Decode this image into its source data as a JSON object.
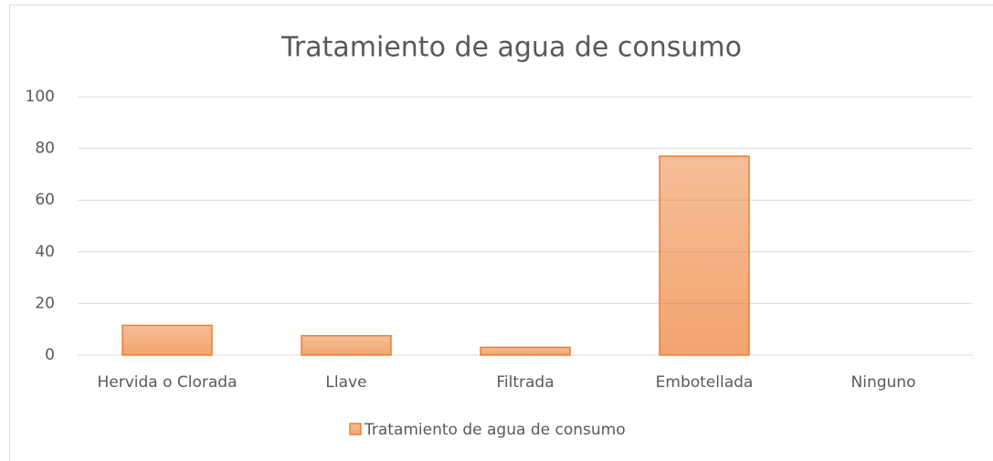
{
  "chart_data": {
    "type": "bar",
    "title": "Tratamiento de agua de consumo",
    "categories": [
      "Hervida o Clorada",
      "Llave",
      "Filtrada",
      "Embotellada",
      "Ninguno"
    ],
    "series": [
      {
        "name": "Tratamiento de agua de consumo",
        "color": "#ed7d31",
        "values": [
          11.5,
          7.5,
          3,
          77,
          0
        ]
      }
    ],
    "ylim": [
      0,
      100
    ],
    "yticks": [
      0,
      20,
      40,
      60,
      80,
      100
    ],
    "grid": true,
    "legend": "bottom"
  }
}
